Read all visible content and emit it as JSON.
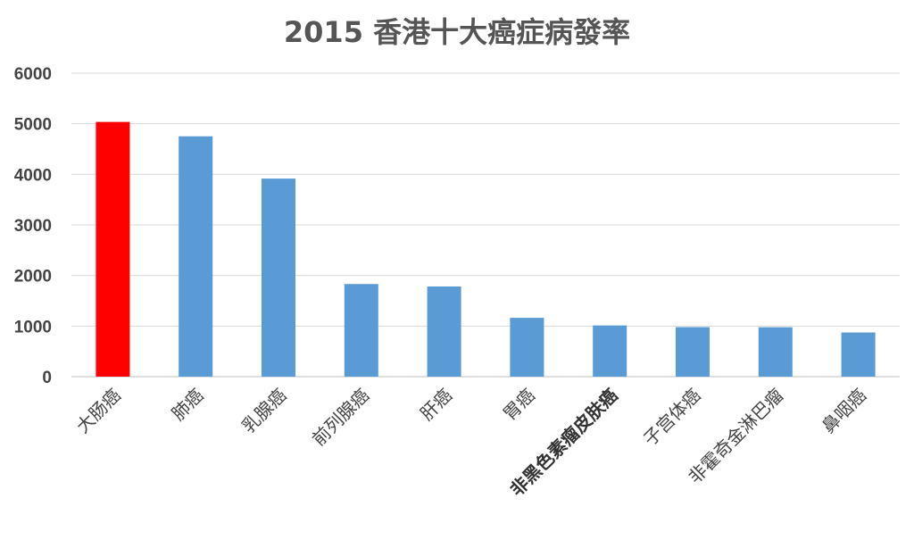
{
  "chart_data": {
    "type": "bar",
    "title": "2015 香港十大癌症病發率",
    "xlabel": "",
    "ylabel": "",
    "categories": [
      "大肠癌",
      "肺癌",
      "乳腺癌",
      "前列腺癌",
      "肝癌",
      "胃癌",
      "非黑色素瘤皮肤癌",
      "子宫体癌",
      "非霍奇金淋巴瘤",
      "鼻咽癌"
    ],
    "values": [
      5036,
      4752,
      3916,
      1831,
      1783,
      1163,
      1012,
      979,
      977,
      873
    ],
    "ylim": [
      0,
      6000
    ],
    "yticks": [
      "0",
      "1000",
      "2000",
      "3000",
      "4000",
      "5000",
      "6000"
    ],
    "grid": true,
    "legend": "none",
    "bar_color": "#5b9bd5",
    "highlight_color": "#ff0000",
    "highlight_index": 0,
    "bold_label_index": 6
  }
}
